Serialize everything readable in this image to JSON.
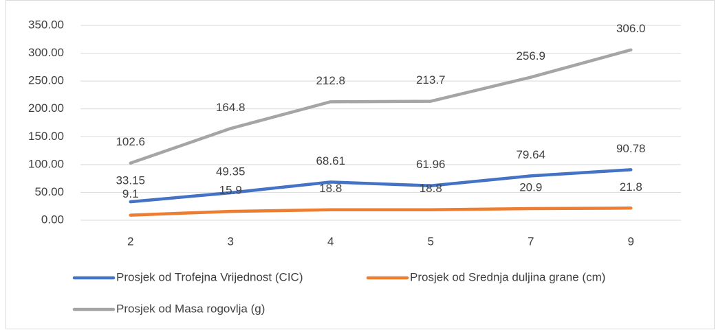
{
  "chart_data": {
    "type": "line",
    "categories": [
      "2",
      "3",
      "4",
      "5",
      "7",
      "9"
    ],
    "series": [
      {
        "name": "Prosjek od Trofejna Vrijednost (CIC)",
        "color": "#4472c4",
        "values": [
          33.15,
          49.35,
          68.61,
          61.96,
          79.64,
          90.78
        ]
      },
      {
        "name": "Prosjek od Srednja duljina grane (cm)",
        "color": "#ed7d31",
        "values": [
          9.1,
          15.9,
          18.8,
          18.8,
          20.9,
          21.8
        ]
      },
      {
        "name": "Prosjek od Masa rogovlja (g)",
        "color": "#a5a5a5",
        "values": [
          102.6,
          164.8,
          212.8,
          213.7,
          256.9,
          306.0
        ],
        "value_labels": [
          "102.6",
          "164.8",
          "212.8",
          "213.7",
          "256.9",
          "306.0"
        ]
      }
    ],
    "ylim": [
      0,
      350
    ],
    "yticks": [
      {
        "value": 0,
        "label": "0.00"
      },
      {
        "value": 50,
        "label": "50.00"
      },
      {
        "value": 100,
        "label": "100.00"
      },
      {
        "value": 150,
        "label": "150.00"
      },
      {
        "value": 200,
        "label": "200.00"
      },
      {
        "value": 250,
        "label": "250.00"
      },
      {
        "value": 300,
        "label": "300.00"
      },
      {
        "value": 350,
        "label": "350.00"
      }
    ],
    "grid": true,
    "legend": "bottom"
  }
}
